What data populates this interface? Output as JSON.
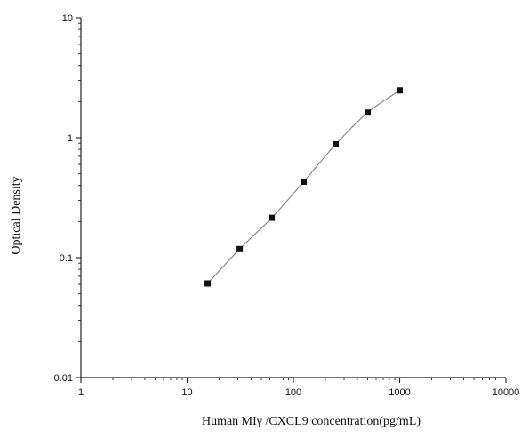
{
  "chart_data": {
    "type": "scatter",
    "title": "",
    "xlabel": "Human MIγ /CXCL9 concentration(pg/mL)",
    "ylabel": "Optical Density",
    "x_scale": "log",
    "y_scale": "log",
    "xlim": [
      1,
      10000
    ],
    "ylim": [
      0.01,
      10
    ],
    "x_ticks": [
      1,
      10,
      100,
      1000,
      10000
    ],
    "x_tick_labels": [
      "1",
      "10",
      "100",
      "1000",
      "10000"
    ],
    "y_ticks": [
      0.01,
      0.1,
      1,
      10
    ],
    "y_tick_labels": [
      "0.01",
      "0.1",
      "1",
      "10"
    ],
    "grid": false,
    "legend": "none",
    "series": [
      {
        "points": [
          {
            "x": 15.6,
            "y": 0.061
          },
          {
            "x": 31.25,
            "y": 0.118
          },
          {
            "x": 62.5,
            "y": 0.215
          },
          {
            "x": 125,
            "y": 0.43
          },
          {
            "x": 250,
            "y": 0.88
          },
          {
            "x": 500,
            "y": 1.62
          },
          {
            "x": 1000,
            "y": 2.48
          }
        ],
        "marker": "square",
        "color": "#111111"
      }
    ],
    "fit_curve": {
      "type": "four-parameter logistic",
      "color": "#8a8a8a"
    }
  }
}
